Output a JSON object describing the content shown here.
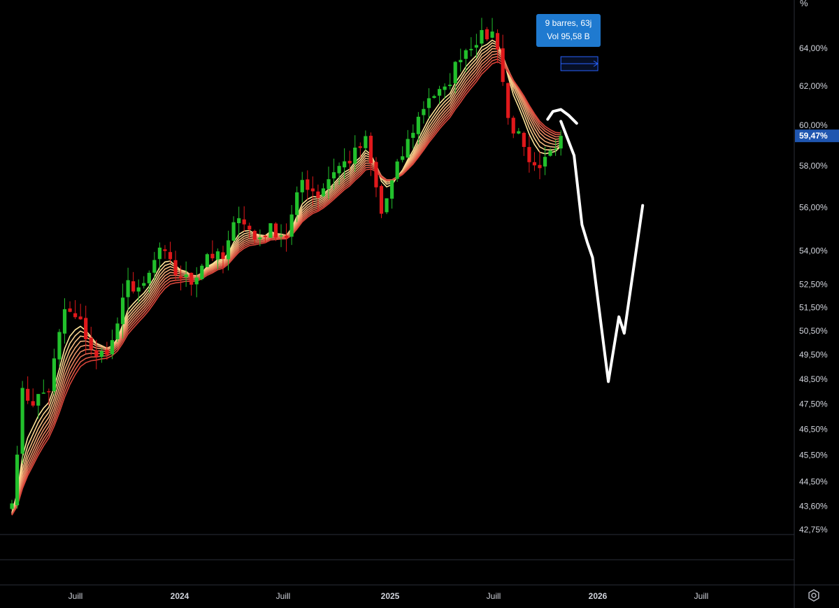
{
  "axis": {
    "unit_label": "%",
    "y_ticks": [
      "64,00%",
      "62,00%",
      "60,00%",
      "58,00%",
      "56,00%",
      "54,00%",
      "52,50%",
      "51,50%",
      "50,50%",
      "49,50%",
      "48,50%",
      "47,50%",
      "46,50%",
      "45,50%",
      "44,50%",
      "43,60%",
      "42,75%"
    ],
    "x_ticks": [
      {
        "label": "Juill",
        "bold": false
      },
      {
        "label": "2024",
        "bold": true
      },
      {
        "label": "Juill",
        "bold": false
      },
      {
        "label": "2025",
        "bold": true
      },
      {
        "label": "Juill",
        "bold": false
      },
      {
        "label": "2026",
        "bold": true
      },
      {
        "label": "Juill",
        "bold": false
      }
    ],
    "last_price": "59,47%"
  },
  "measure_tooltip": {
    "line1": "9 barres, 63j",
    "line2": "Vol 95,58 B"
  },
  "colors": {
    "up": "#22c02c",
    "down": "#e0181b",
    "badge": "#1f56b0",
    "tooltip": "#1f7ad0",
    "ribbon_top": "#ffe59a",
    "ribbon_bottom": "#d8453a",
    "drawing": "#ffffff"
  },
  "chart_data": {
    "type": "candlestick",
    "scale": "log",
    "y_unit": "%",
    "ylim": [
      42.75,
      65.5
    ],
    "timeframe": "weekly",
    "last_value": 59.47,
    "ribbon": "moving-average ribbon (multiple EMAs)",
    "anchors": [
      [
        0,
        43.7
      ],
      [
        2,
        47.9
      ],
      [
        4,
        47.6
      ],
      [
        7,
        48.1
      ],
      [
        10,
        51.4
      ],
      [
        13,
        50.8
      ],
      [
        16,
        49.3
      ],
      [
        19,
        50.0
      ],
      [
        22,
        52.5
      ],
      [
        25,
        52.3
      ],
      [
        28,
        54.1
      ],
      [
        31,
        53.0
      ],
      [
        34,
        52.6
      ],
      [
        37,
        53.9
      ],
      [
        40,
        53.6
      ],
      [
        43,
        55.8
      ],
      [
        46,
        54.5
      ],
      [
        49,
        55.0
      ],
      [
        52,
        54.7
      ],
      [
        55,
        57.3
      ],
      [
        58,
        56.6
      ],
      [
        61,
        57.8
      ],
      [
        64,
        58.3
      ],
      [
        67,
        59.2
      ],
      [
        70,
        55.7
      ],
      [
        73,
        57.9
      ],
      [
        76,
        59.8
      ],
      [
        79,
        61.5
      ],
      [
        82,
        61.7
      ],
      [
        85,
        63.7
      ],
      [
        88,
        64.5
      ],
      [
        91,
        64.8
      ],
      [
        92,
        64.2
      ],
      [
        94,
        60.3
      ],
      [
        96,
        59.4
      ],
      [
        98,
        57.9
      ],
      [
        100,
        57.6
      ],
      [
        102,
        58.9
      ],
      [
        104,
        59.47
      ]
    ],
    "projection_path": [
      [
        60.2,
        0
      ],
      [
        58.5,
        2.5
      ],
      [
        55.2,
        4
      ],
      [
        54.4,
        5
      ],
      [
        53.7,
        6
      ],
      [
        48.4,
        9
      ],
      [
        51.1,
        11
      ],
      [
        50.4,
        12
      ],
      [
        56.1,
        15.5
      ]
    ],
    "projection_hook": [
      [
        60.3,
        -2.5
      ],
      [
        60.7,
        -1.5
      ],
      [
        60.8,
        0
      ],
      [
        60.5,
        1.5
      ],
      [
        60.1,
        3
      ]
    ]
  }
}
